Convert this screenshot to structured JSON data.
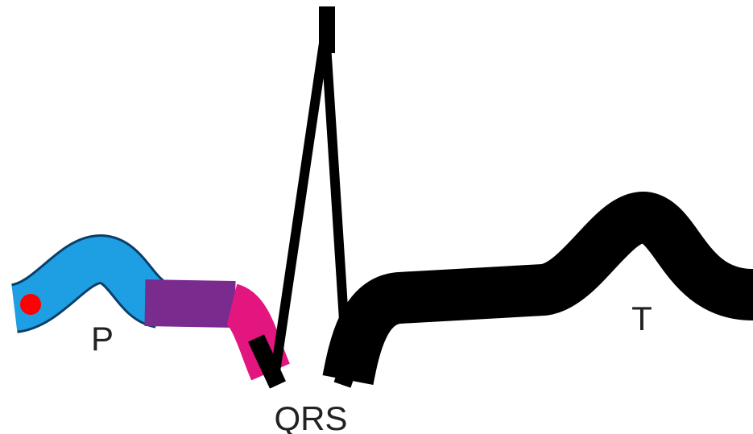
{
  "waves": [
    {
      "label": "P"
    },
    {
      "label": "QRS"
    },
    {
      "label": "T"
    }
  ]
}
